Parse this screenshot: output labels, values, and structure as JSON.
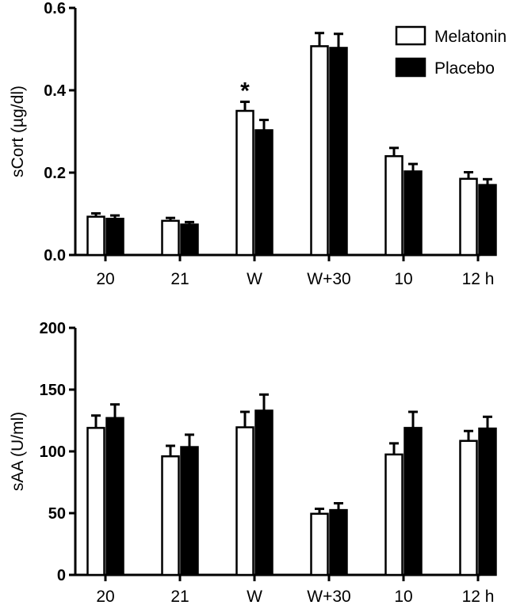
{
  "chart_data": [
    {
      "type": "bar",
      "title": "",
      "xlabel": "",
      "ylabel": "sCort (µg/dl)",
      "categories": [
        "20",
        "21",
        "W",
        "W+30",
        "10",
        "12 h"
      ],
      "ylim": [
        0,
        0.6
      ],
      "yticks": [
        0.0,
        0.2,
        0.4,
        0.6
      ],
      "ytick_labels": [
        "0.0",
        "0.2",
        "0.4",
        "0.6"
      ],
      "series": [
        {
          "name": "Melatonin",
          "color": "#ffffff",
          "values": [
            0.093,
            0.083,
            0.35,
            0.507,
            0.24,
            0.185
          ],
          "errors": [
            0.008,
            0.007,
            0.022,
            0.032,
            0.02,
            0.016
          ]
        },
        {
          "name": "Placebo",
          "color": "#000000",
          "values": [
            0.088,
            0.074,
            0.303,
            0.503,
            0.203,
            0.17
          ],
          "errors": [
            0.008,
            0.006,
            0.025,
            0.034,
            0.018,
            0.014
          ]
        }
      ],
      "annotations": [
        {
          "text": "*",
          "category": "W",
          "series": "Melatonin"
        }
      ],
      "legend": {
        "position": "top-right",
        "entries": [
          "Melatonin",
          "Placebo"
        ]
      }
    },
    {
      "type": "bar",
      "title": "",
      "xlabel": "",
      "ylabel": "sAA (U/ml)",
      "categories": [
        "20",
        "21",
        "W",
        "W+30",
        "10",
        "12 h"
      ],
      "ylim": [
        0,
        200
      ],
      "yticks": [
        0,
        50,
        100,
        150,
        200
      ],
      "ytick_labels": [
        "0",
        "50",
        "100",
        "150",
        "200"
      ],
      "series": [
        {
          "name": "Melatonin",
          "color": "#ffffff",
          "values": [
            119,
            96,
            119.5,
            49.5,
            97.5,
            108.5
          ],
          "errors": [
            10,
            8.5,
            12.5,
            4,
            9,
            8
          ]
        },
        {
          "name": "Placebo",
          "color": "#000000",
          "values": [
            127,
            103.5,
            133,
            52.5,
            119,
            118.5
          ],
          "errors": [
            11,
            10,
            13,
            5.5,
            13,
            9.5
          ]
        }
      ]
    }
  ]
}
